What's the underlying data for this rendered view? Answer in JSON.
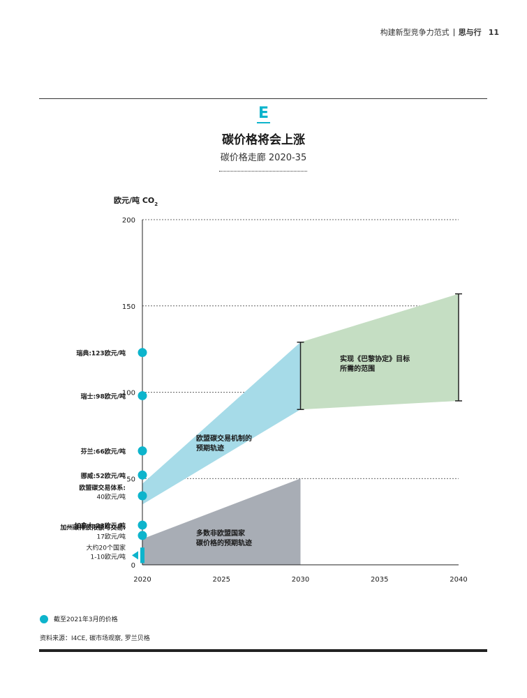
{
  "header": {
    "section": "构建新型竞争力范式",
    "brand": "思与行",
    "page": "11"
  },
  "exhibit_letter": "E",
  "colors": {
    "accent": "#0db4cc",
    "eu_band": "#a6dbe8",
    "paris_band": "#c5dec3",
    "non_eu_band": "#a8adb5"
  },
  "chart_data": {
    "type": "area",
    "title": "碳价格将会上涨",
    "subtitle": "碳价格走廊 2020-35",
    "ylabel": "欧元/吨 CO",
    "ylabel_sub": "2",
    "xlabel": "",
    "xlim": [
      2020,
      2040
    ],
    "ylim": [
      0,
      200
    ],
    "x_ticks": [
      2020,
      2025,
      2030,
      2035,
      2040
    ],
    "y_ticks": [
      0,
      50,
      100,
      150,
      200
    ],
    "dashed_gridlines": [
      50,
      100,
      150,
      200
    ],
    "series": [
      {
        "name": "欧盟碳交易机制的预期轨迹",
        "label_lines": [
          "欧盟碳交易机制的",
          "预期轨迹"
        ],
        "color": "#a6dbe8",
        "x": [
          2020,
          2030
        ],
        "low": [
          35,
          90
        ],
        "high": [
          47,
          129
        ]
      },
      {
        "name": "实现《巴黎协定》目标所需的范围",
        "label_lines": [
          "实现《巴黎协定》目标",
          "所需的范围"
        ],
        "color": "#c5dec3",
        "x": [
          2030,
          2040
        ],
        "low": [
          90,
          95
        ],
        "high": [
          129,
          157
        ]
      },
      {
        "name": "多数非欧盟国家碳价格的预期轨迹",
        "label_lines": [
          "多数非欧盟国家",
          "碳价格的预期轨迹"
        ],
        "color": "#a8adb5",
        "x": [
          2020,
          2030
        ],
        "low": [
          0,
          0
        ],
        "high": [
          15,
          50
        ]
      }
    ],
    "error_bars": [
      {
        "x": 2030,
        "low": 90,
        "high": 129
      },
      {
        "x": 2040,
        "low": 95,
        "high": 157
      }
    ],
    "points": [
      {
        "label_lines": [
          "瑞典:123欧元/吨"
        ],
        "value": 123
      },
      {
        "label_lines": [
          "瑞士:98欧元/吨"
        ],
        "value": 98
      },
      {
        "label_lines": [
          "芬兰:66欧元/吨"
        ],
        "value": 66
      },
      {
        "label_lines": [
          "挪威:52欧元/吨"
        ],
        "value": 52
      },
      {
        "label_lines": [
          "欧盟碳交易体系:",
          "40欧元/吨"
        ],
        "value": 40
      },
      {
        "label_lines": [
          "加拿大:23欧元/吨"
        ],
        "value": 23
      },
      {
        "label_lines": [
          "加州碳排放限额与交易:",
          "17欧元/吨"
        ],
        "value": 17
      }
    ],
    "range_marker": {
      "label_lines": [
        "大约20个国家",
        "1-10欧元/吨"
      ],
      "low": 1,
      "high": 10
    },
    "legend": {
      "marker_label": "截至2021年3月的价格",
      "placement": "bottom-left"
    }
  },
  "source": "资料来源：I4CE, 碳市场观察, 罗兰贝格"
}
